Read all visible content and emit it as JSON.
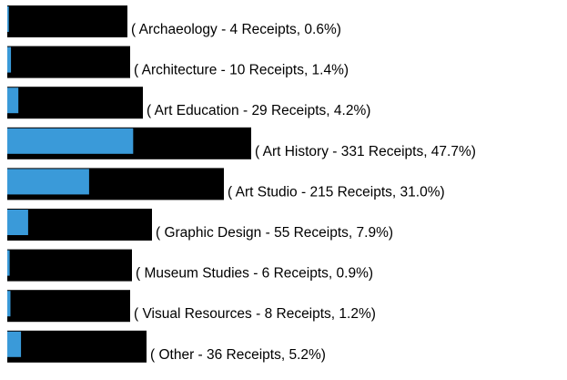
{
  "chart_data": {
    "type": "bar",
    "categories": [
      "( Archaeology - 4 Receipts, 0.6%)",
      "( Architecture - 10 Receipts, 1.4%)",
      "( Art Education - 29 Receipts, 4.2%)",
      "( Art History - 331 Receipts, 47.7%)",
      "( Art Studio - 215 Receipts, 31.0%)",
      "( Graphic Design - 55 Receipts, 7.9%)",
      "( Museum Studies - 6 Receipts, 0.9%)",
      "( Visual Resources - 8 Receipts, 1.2%)",
      "( Other - 36 Receipts, 5.2%)"
    ],
    "values": [
      0.6,
      1.4,
      4.2,
      47.7,
      31.0,
      7.9,
      0.9,
      1.2,
      5.2
    ],
    "color": "#3a9ad9"
  }
}
